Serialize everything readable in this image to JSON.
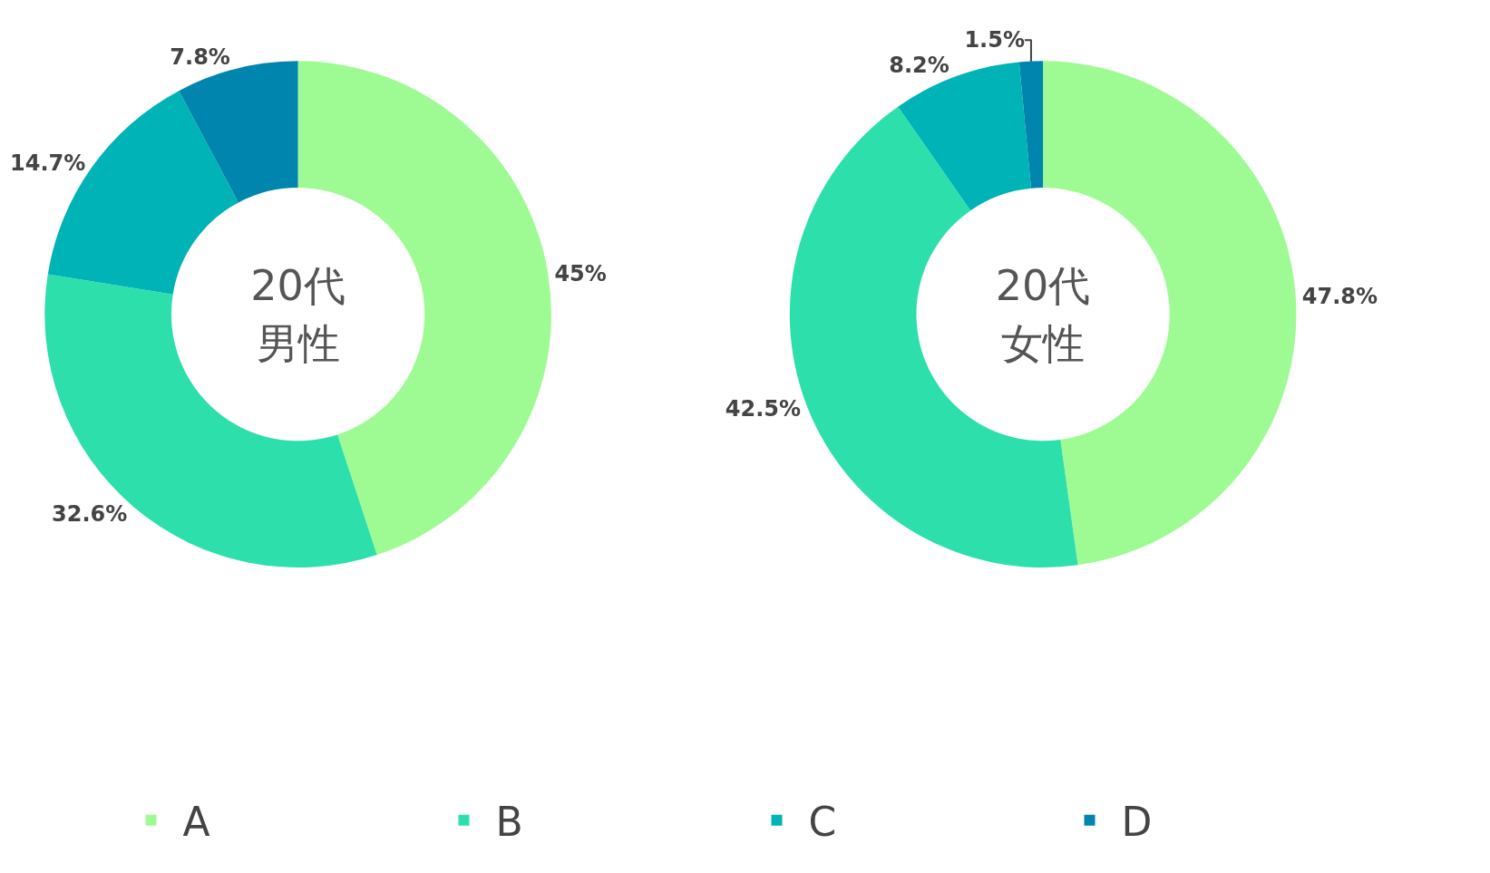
{
  "chart_data": [
    {
      "type": "donut",
      "title": "20代男性",
      "categories": [
        "A",
        "B",
        "C",
        "D"
      ],
      "values": [
        45,
        32.6,
        14.7,
        7.8
      ],
      "value_labels": [
        "45%",
        "32.6%",
        "14.7%",
        "7.8%"
      ],
      "colors": [
        "#9efb93",
        "#2ddfab",
        "#00b3b6",
        "#0086ae"
      ],
      "legend": "bottom"
    },
    {
      "type": "donut",
      "title": "20代女性",
      "categories": [
        null,
        null,
        null,
        null
      ],
      "values": [
        47.8,
        42.5,
        8.2,
        1.5
      ],
      "value_labels": [
        "47.8%",
        "42.5%",
        "8.2%",
        "1.5%"
      ],
      "colors": [
        "#9efb93",
        "#2ddfab",
        "#00b3b6",
        "#0086ae"
      ]
    }
  ]
}
